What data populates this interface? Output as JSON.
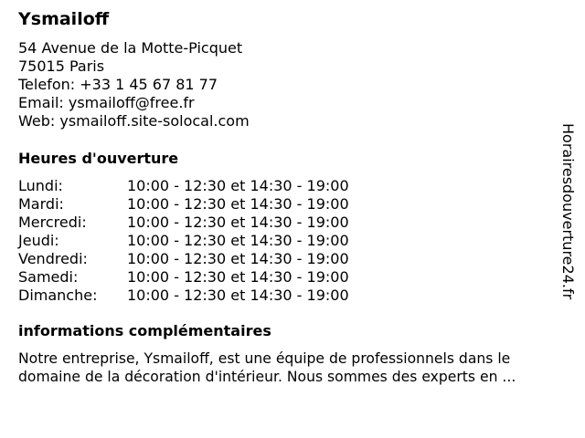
{
  "business": {
    "name": "Ysmailoff",
    "address_lines": [
      "54 Avenue de la Motte-Picquet",
      "75015 Paris",
      "Telefon: +33 1 45 67 81 77",
      "Email: ysmailoff@free.fr",
      "Web: ysmailoff.site-solocal.com"
    ]
  },
  "hours": {
    "heading": "Heures d'ouverture",
    "rows": [
      {
        "day": "Lundi:",
        "time": "10:00 - 12:30 et 14:30 - 19:00"
      },
      {
        "day": "Mardi:",
        "time": "10:00 - 12:30 et 14:30 - 19:00"
      },
      {
        "day": "Mercredi:",
        "time": "10:00 - 12:30 et 14:30 - 19:00"
      },
      {
        "day": "Jeudi:",
        "time": "10:00 - 12:30 et 14:30 - 19:00"
      },
      {
        "day": "Vendredi:",
        "time": "10:00 - 12:30 et 14:30 - 19:00"
      },
      {
        "day": "Samedi:",
        "time": "10:00 - 12:30 et 14:30 - 19:00"
      },
      {
        "day": "Dimanche:",
        "time": "10:00 - 12:30 et 14:30 - 19:00"
      }
    ]
  },
  "info": {
    "heading": "informations complémentaires",
    "lines": [
      "Notre entreprise, Ysmailoff, est une équipe de professionnels dans le",
      "domaine de la décoration d'intérieur. Nous sommes des experts en ..."
    ]
  },
  "watermark": "Horairesdouverture24.fr"
}
